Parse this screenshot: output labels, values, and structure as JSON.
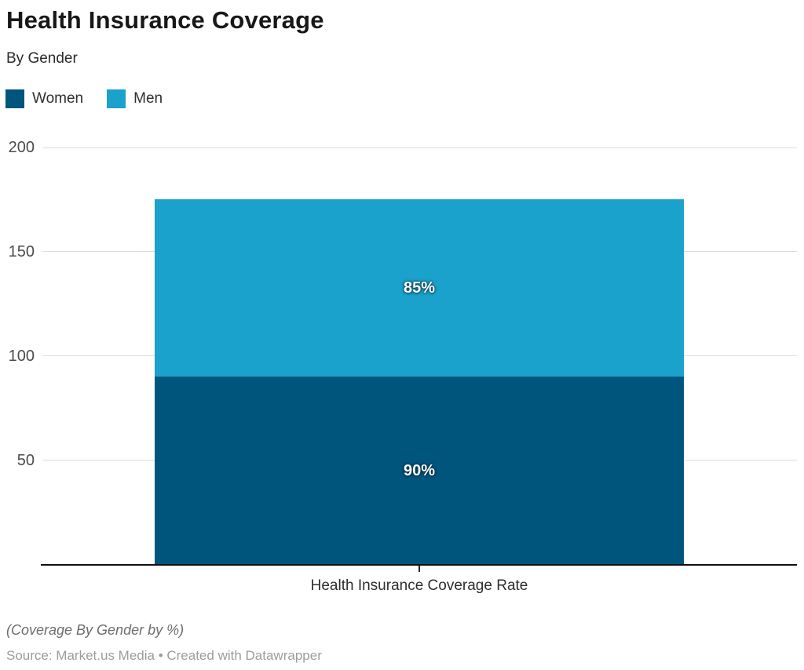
{
  "header": {
    "title": "Health Insurance Coverage",
    "subtitle": "By Gender"
  },
  "legend": {
    "items": [
      {
        "label": "Women",
        "color": "#00557d"
      },
      {
        "label": "Men",
        "color": "#1aa1cc"
      }
    ]
  },
  "chart_data": {
    "type": "bar",
    "stacked": true,
    "categories": [
      "Health Insurance Coverage Rate"
    ],
    "series": [
      {
        "name": "Women",
        "values": [
          90
        ],
        "color": "#00557d",
        "data_label": "90%"
      },
      {
        "name": "Men",
        "values": [
          85
        ],
        "color": "#1aa1cc",
        "data_label": "85%"
      }
    ],
    "title": "Health Insurance Coverage",
    "subtitle": "By Gender",
    "xlabel": "Health Insurance Coverage Rate",
    "ylabel": "",
    "ylim": [
      0,
      200
    ],
    "yticks": [
      50,
      100,
      150,
      200
    ],
    "grid": true,
    "legend_position": "top-left",
    "value_suffix": "%"
  },
  "footer": {
    "footnote": "(Coverage By Gender by %)",
    "source": "Source: Market.us Media • Created with Datawrapper"
  }
}
